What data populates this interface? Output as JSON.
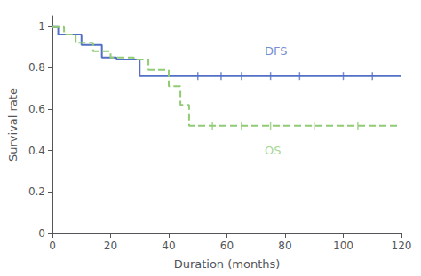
{
  "chart_data": {
    "type": "step",
    "xlabel": "Duration (months)",
    "ylabel": "Survival rate",
    "xlim": [
      0,
      120
    ],
    "ylim": [
      0,
      1.05
    ],
    "xticks": [
      0,
      20,
      40,
      60,
      80,
      100,
      120
    ],
    "yticks": [
      0,
      0.2,
      0.4,
      0.6,
      0.8,
      1
    ],
    "grid": false,
    "series": [
      {
        "x": [
          0,
          2,
          10,
          17,
          22,
          30,
          38,
          45,
          120
        ],
        "y": [
          1.0,
          0.96,
          0.91,
          0.85,
          0.84,
          0.76,
          0.76,
          0.76,
          0.76
        ],
        "line_style": "solid",
        "censored_x": [
          50,
          58,
          65,
          75,
          85,
          100,
          110
        ],
        "censored_y": [
          0.76,
          0.76,
          0.76,
          0.76,
          0.76,
          0.76,
          0.76
        ]
      },
      {
        "x": [
          0,
          4,
          8,
          14,
          20,
          28,
          33,
          40,
          44,
          47,
          50,
          120
        ],
        "y": [
          1.0,
          0.96,
          0.92,
          0.88,
          0.85,
          0.84,
          0.79,
          0.71,
          0.62,
          0.52,
          0.52,
          0.52
        ],
        "line_style": "dashed",
        "censored_x": [
          55,
          65,
          75,
          90,
          105
        ],
        "censored_y": [
          0.52,
          0.52,
          0.52,
          0.52,
          0.52
        ]
      }
    ],
    "annotations": [
      {
        "text": "DFS",
        "x": 73,
        "y": 0.88,
        "series": 0
      },
      {
        "text": "OS",
        "x": 73,
        "y": 0.4,
        "series": 1
      }
    ]
  }
}
